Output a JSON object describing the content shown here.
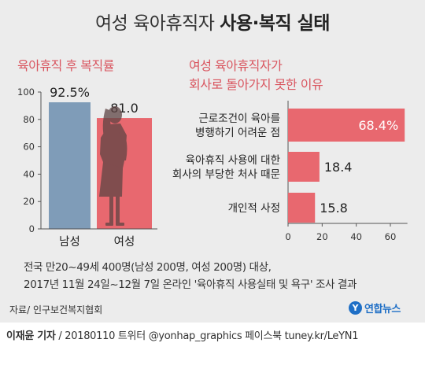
{
  "title": {
    "regular": "여성 육아휴직자",
    "bold": "사용·복직 실태"
  },
  "colors": {
    "male": "#7f9cb8",
    "female": "#e8686f",
    "accent": "#d9545e",
    "background": "#ececec",
    "logo": "#1f6fc6"
  },
  "chart_data": [
    {
      "type": "bar",
      "title": "육아휴직 후 복직률",
      "categories": [
        "남성",
        "여성"
      ],
      "values": [
        92.5,
        81.0
      ],
      "value_labels": [
        "92.5%",
        "81.0"
      ],
      "ylim": [
        0,
        100
      ],
      "yticks": [
        0,
        20,
        40,
        60,
        80,
        100
      ],
      "bar_colors": [
        "#7f9cb8",
        "#e8686f"
      ]
    },
    {
      "type": "bar",
      "orientation": "horizontal",
      "title": [
        "여성 육아휴직자가",
        "회사로 돌아가지 못한 이유"
      ],
      "categories": [
        [
          "근로조건이 육아를",
          "병행하기 어려운 점"
        ],
        [
          "육아휴직 사용에 대한",
          "회사의 부당한 처사 때문"
        ],
        [
          "개인적 사정"
        ]
      ],
      "values": [
        68.4,
        18.4,
        15.8
      ],
      "value_labels": [
        "68.4%",
        "18.4",
        "15.8"
      ],
      "xlim": [
        0,
        70
      ],
      "xticks": [
        0,
        20,
        40,
        60
      ]
    }
  ],
  "note": {
    "line1": "전국 만20~49세 400명(남성 200명, 여성 200명) 대상,",
    "line2": "2017년 11월 24일~12월 7일 온라인 '육아휴직 사용실태 및 욕구' 조사 결과"
  },
  "source": "자료/ 인구보건복지협회",
  "logo_text": "연합뉴스",
  "footer": {
    "reporter": "이재윤 기자",
    "rest": " / 20180110   트위터 @yonhap_graphics  페이스북 tuney.kr/LeYN1"
  }
}
